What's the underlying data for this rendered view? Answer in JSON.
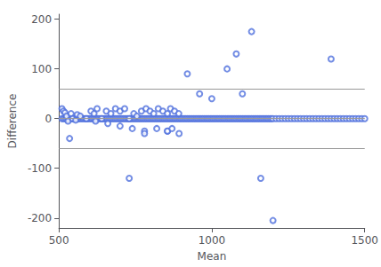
{
  "chart_data": {
    "type": "scatter",
    "title": "",
    "xlabel": "Mean",
    "ylabel": "Difference",
    "xlim": [
      500,
      1500
    ],
    "ylim": [
      -220,
      210
    ],
    "xticks": [
      500,
      1000,
      1500
    ],
    "yticks": [
      -200,
      -100,
      0,
      100,
      200
    ],
    "grid": false,
    "marker": "emptyCircle",
    "reference_lines": {
      "y": [
        60,
        -60,
        0
      ],
      "color": "#999999"
    },
    "x": [
      510,
      515,
      520,
      525,
      530,
      535,
      540,
      545,
      550,
      555,
      560,
      565,
      570,
      575,
      580,
      585,
      590,
      595,
      600,
      605,
      610,
      615,
      620,
      625,
      630,
      635,
      640,
      645,
      650,
      655,
      660,
      665,
      670,
      675,
      680,
      685,
      690,
      695,
      700,
      705,
      710,
      715,
      720,
      725,
      730,
      735,
      740,
      745,
      750,
      755,
      760,
      765,
      770,
      775,
      780,
      785,
      790,
      795,
      800,
      805,
      810,
      815,
      820,
      825,
      830,
      835,
      840,
      845,
      850,
      855,
      860,
      865,
      870,
      875,
      880,
      885,
      890,
      895,
      900,
      905,
      910,
      915,
      920,
      925,
      930,
      935,
      940,
      945,
      950,
      955,
      960,
      965,
      970,
      975,
      980,
      985,
      990,
      995,
      1000,
      1005,
      1010,
      1015,
      1020,
      1025,
      1030,
      1035,
      1040,
      1045,
      1050,
      1055,
      1060,
      1065,
      1070,
      1075,
      1080,
      1085,
      1090,
      1095,
      1100,
      1105,
      1110,
      1115,
      1120,
      1125,
      1130,
      1135,
      1140,
      1145,
      1150,
      1155,
      1160,
      1165,
      1170,
      1175,
      1180,
      1185,
      1190,
      1195,
      1200,
      1210,
      1220,
      1230,
      1240,
      1250,
      1260,
      1270,
      1280,
      1290,
      1300,
      1310,
      1320,
      1330,
      1340,
      1350,
      1360,
      1370,
      1380,
      1390,
      1400,
      1410,
      1420,
      1430,
      1440,
      1450,
      1460,
      1470,
      1480,
      1490,
      1500,
      510,
      515,
      520,
      525,
      530,
      540,
      545,
      555,
      560,
      570,
      590,
      605,
      615,
      625,
      640,
      655,
      670,
      685,
      700,
      715,
      730,
      745,
      755,
      770,
      785,
      798,
      810,
      825,
      840,
      855,
      865,
      878,
      892,
      620,
      660,
      700,
      740,
      780,
      820,
      855,
      893,
      535,
      730,
      780,
      855,
      870,
      920,
      960,
      1000,
      1050,
      1080,
      1100,
      1130,
      1160,
      1200,
      1390
    ],
    "values": [
      0,
      0,
      0,
      0,
      0,
      0,
      0,
      0,
      0,
      0,
      0,
      0,
      0,
      0,
      0,
      0,
      0,
      0,
      0,
      0,
      0,
      0,
      0,
      0,
      0,
      0,
      0,
      0,
      0,
      0,
      0,
      0,
      0,
      0,
      0,
      0,
      0,
      0,
      0,
      0,
      0,
      0,
      0,
      0,
      0,
      0,
      0,
      0,
      0,
      0,
      0,
      0,
      0,
      0,
      0,
      0,
      0,
      0,
      0,
      0,
      0,
      0,
      0,
      0,
      0,
      0,
      0,
      0,
      0,
      0,
      0,
      0,
      0,
      0,
      0,
      0,
      0,
      0,
      0,
      0,
      0,
      0,
      0,
      0,
      0,
      0,
      0,
      0,
      0,
      0,
      0,
      0,
      0,
      0,
      0,
      0,
      0,
      0,
      0,
      0,
      0,
      0,
      0,
      0,
      0,
      0,
      0,
      0,
      0,
      0,
      0,
      0,
      0,
      0,
      0,
      0,
      0,
      0,
      0,
      0,
      0,
      0,
      0,
      0,
      0,
      0,
      0,
      0,
      0,
      0,
      0,
      0,
      0,
      0,
      0,
      0,
      0,
      0,
      0,
      0,
      0,
      0,
      0,
      0,
      0,
      0,
      0,
      0,
      0,
      0,
      0,
      0,
      0,
      0,
      0,
      0,
      0,
      0,
      0,
      0,
      0,
      0,
      0,
      0,
      0,
      0,
      0,
      0,
      0,
      20,
      15,
      12,
      5,
      -5,
      10,
      0,
      -3,
      8,
      5,
      0,
      15,
      10,
      20,
      0,
      15,
      10,
      20,
      15,
      20,
      0,
      10,
      5,
      15,
      20,
      15,
      10,
      20,
      15,
      10,
      20,
      15,
      10,
      -5,
      -10,
      -15,
      -20,
      -25,
      -20,
      -25,
      -30,
      -40,
      -120,
      -30,
      -25,
      -20,
      90,
      50,
      40,
      100,
      130,
      50,
      175,
      -120,
      -205,
      120
    ]
  }
}
